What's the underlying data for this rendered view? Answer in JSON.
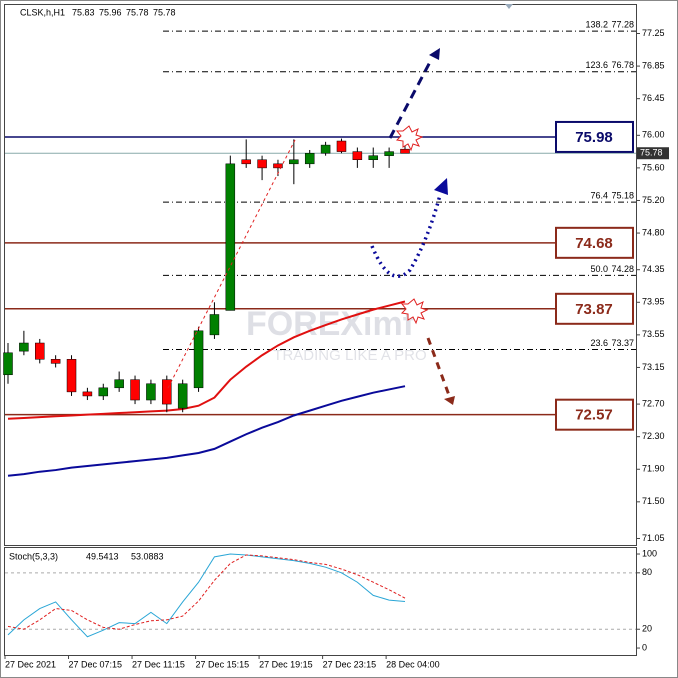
{
  "chart_data": [
    {
      "type": "candlestick",
      "symbol": "CLSK,h,H1",
      "bar_info": [
        75.83,
        75.96,
        75.78,
        75.78
      ],
      "open": [
        73.06,
        73.35,
        73.45,
        73.25,
        73.25,
        72.85,
        72.8,
        72.9,
        73.0,
        72.75,
        73.0,
        72.65,
        72.9,
        73.55,
        73.85,
        75.7,
        75.7,
        75.65,
        75.65,
        75.65,
        75.78,
        75.93,
        75.8,
        75.7,
        75.75,
        75.83
      ],
      "high": [
        73.45,
        73.6,
        73.5,
        73.3,
        73.3,
        72.9,
        72.95,
        73.1,
        73.05,
        73.0,
        73.05,
        73.0,
        73.65,
        73.95,
        75.75,
        75.95,
        75.75,
        75.7,
        75.95,
        75.82,
        75.92,
        75.96,
        75.85,
        75.85,
        75.85,
        75.96
      ],
      "low": [
        72.95,
        73.3,
        73.2,
        73.15,
        72.8,
        72.75,
        72.75,
        72.85,
        72.7,
        72.7,
        72.6,
        72.6,
        72.85,
        73.5,
        73.85,
        75.6,
        75.45,
        75.5,
        75.4,
        75.6,
        75.75,
        75.78,
        75.6,
        75.6,
        75.6,
        75.78
      ],
      "close": [
        73.33,
        73.45,
        73.25,
        73.2,
        72.85,
        72.8,
        72.9,
        73.0,
        72.75,
        72.95,
        72.7,
        72.95,
        73.6,
        73.8,
        75.65,
        75.65,
        75.6,
        75.6,
        75.7,
        75.78,
        75.88,
        75.8,
        75.7,
        75.75,
        75.8,
        75.78
      ],
      "up_color": "#008000",
      "down_color": "#ff0000",
      "lines": [
        {
          "color": "#e01010",
          "values": [
            72.52,
            72.53,
            72.54,
            72.55,
            72.56,
            72.57,
            72.58,
            72.59,
            72.6,
            72.61,
            72.62,
            72.64,
            72.68,
            72.78,
            73.0,
            73.16,
            73.3,
            73.42,
            73.52,
            73.6,
            73.67,
            73.74,
            73.8,
            73.86,
            73.91,
            73.96
          ]
        },
        {
          "color": "#0a0a9a",
          "values": [
            71.82,
            71.84,
            71.87,
            71.89,
            71.92,
            71.94,
            71.96,
            71.98,
            72.0,
            72.02,
            72.04,
            72.07,
            72.1,
            72.15,
            72.24,
            72.33,
            72.41,
            72.48,
            72.56,
            72.62,
            72.68,
            72.74,
            72.79,
            72.84,
            72.88,
            72.92
          ]
        }
      ],
      "levels": [
        {
          "value": 75.98,
          "color": "#0a0a6a"
        },
        {
          "value": 74.68,
          "color": "#8b2a1a"
        },
        {
          "value": 73.87,
          "color": "#8b2a1a"
        },
        {
          "value": 72.57,
          "color": "#8b2a1a"
        }
      ],
      "fib_levels": [
        {
          "ratio": "138.2",
          "value": 77.28
        },
        {
          "ratio": "123.6",
          "value": 76.78
        },
        {
          "ratio": "76.4",
          "value": 75.18
        },
        {
          "ratio": "50.0",
          "value": 74.28
        },
        {
          "ratio": "23.6",
          "value": 73.37
        }
      ],
      "last_price": 75.78,
      "watermark": "FOREXimf",
      "watermark_slogan": "TRADING LIKE A PRO",
      "ylim": [
        70.97,
        77.6
      ],
      "yticks": [
        77.25,
        76.85,
        76.45,
        {
          "value": 76,
          "label": "76.00"
        },
        {
          "value": 75.6,
          "label": "75.60"
        },
        {
          "value": 75.2,
          "label": "75.20"
        },
        {
          "value": 74.8,
          "label": "74.80"
        },
        74.35,
        73.95,
        73.55,
        73.15,
        {
          "value": 72.7,
          "label": "72.70"
        },
        {
          "value": 72.3,
          "label": "72.30"
        },
        {
          "value": 71.9,
          "label": "71.90"
        },
        {
          "value": 71.5,
          "label": "71.50"
        },
        71.05
      ]
    },
    {
      "type": "line",
      "title": "Stoch(5,3,3)",
      "title_values": [
        49.5413,
        53.0883
      ],
      "categories": [
        "27 Dec 2021",
        null,
        null,
        null,
        "27 Dec 07:15",
        null,
        null,
        null,
        "27 Dec 11:15",
        null,
        null,
        null,
        "27 Dec 15:15",
        null,
        null,
        null,
        "27 Dec 19:15",
        null,
        null,
        null,
        "27 Dec 23:15",
        null,
        null,
        null,
        "28 Dec 04:00",
        null
      ],
      "series": [
        {
          "color": "#2aa6d6",
          "values": [
            14,
            30,
            42,
            49,
            30,
            12,
            19,
            27,
            26,
            38,
            26,
            49,
            70,
            97,
            100,
            99,
            97,
            95,
            93,
            90,
            86,
            80,
            70,
            56,
            51,
            49.5413
          ]
        },
        {
          "color": "#e02020",
          "dashed": true,
          "values": [
            23,
            20,
            30,
            42,
            40,
            30,
            22,
            20,
            25,
            29,
            30,
            34,
            50,
            72,
            90,
            99,
            98,
            96,
            94,
            91,
            89,
            84,
            78,
            70,
            62,
            53.0883
          ]
        }
      ],
      "levels": [
        80,
        20
      ],
      "ylim": [
        -7.4,
        106.4
      ],
      "yticks": [
        100,
        80,
        20,
        0
      ]
    }
  ]
}
